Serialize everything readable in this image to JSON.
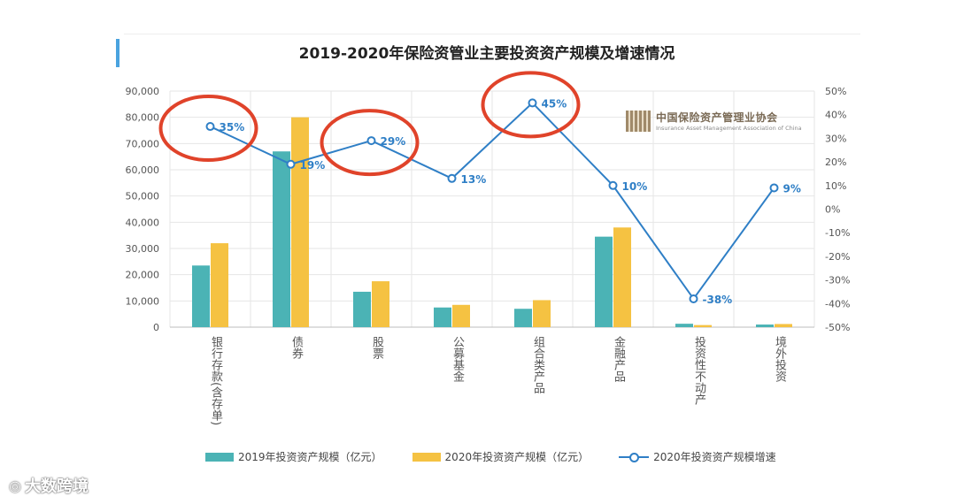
{
  "chart_data": {
    "type": "bar",
    "title": "2019-2020年保险资管业主要投资资产规模及增速情况",
    "categories": [
      "银行存款(含存单)",
      "债券",
      "股票",
      "公募基金",
      "组合类产品",
      "金融产品",
      "投资性不动产",
      "境外投资"
    ],
    "series": [
      {
        "name": "2019年投资资产规模（亿元）",
        "type": "bar",
        "axis": "left",
        "color": "#4bb3b5",
        "values": [
          23500,
          67000,
          13500,
          7500,
          7000,
          34500,
          1300,
          1000
        ]
      },
      {
        "name": "2020年投资资产规模（亿元）",
        "type": "bar",
        "axis": "left",
        "color": "#f5c242",
        "values": [
          32000,
          80000,
          17500,
          8500,
          10300,
          38000,
          800,
          1200
        ]
      },
      {
        "name": "2020年投资资产规模增速",
        "type": "line",
        "axis": "right",
        "color": "#2f7fc6",
        "values": [
          35,
          19,
          29,
          13,
          45,
          10,
          -38,
          9
        ],
        "labels": [
          "35%",
          "19%",
          "29%",
          "13%",
          "45%",
          "10%",
          "-38%",
          "9%"
        ]
      }
    ],
    "left_axis": {
      "min": 0,
      "max": 90000,
      "ticks": [
        "0",
        "10,000",
        "20,000",
        "30,000",
        "40,000",
        "50,000",
        "60,000",
        "70,000",
        "80,000",
        "90,000"
      ]
    },
    "right_axis": {
      "min": -50,
      "max": 50,
      "ticks": [
        "-50%",
        "-40%",
        "-30%",
        "-20%",
        "-10%",
        "0%",
        "10%",
        "20%",
        "30%",
        "40%",
        "50%"
      ]
    },
    "highlighted_categories": [
      "银行存款(含存单)",
      "股票",
      "组合类产品"
    ],
    "grid": true,
    "legend": "bottom"
  },
  "logo": {
    "name_cn": "中国保险资产管理业协会",
    "name_en": "Insurance Asset Management Association of China"
  },
  "watermark": {
    "icon": "weibo-icon",
    "text": "大数跨境"
  },
  "colors": {
    "accent": "#4aa3df",
    "highlight_circle": "#e0432a"
  }
}
